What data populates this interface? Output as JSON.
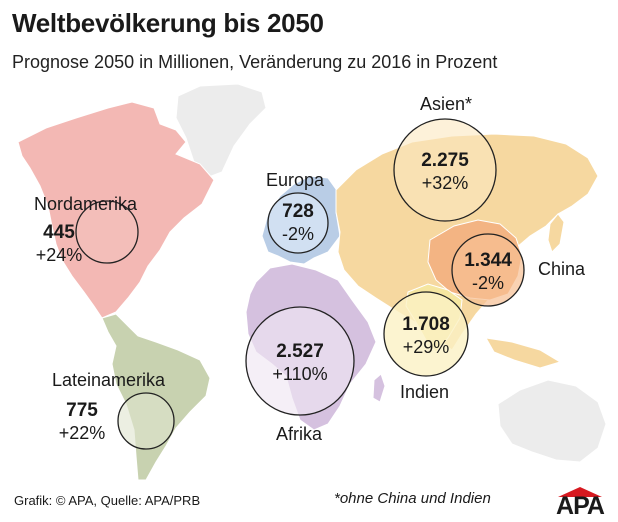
{
  "title": "Weltbevölkerung bis 2050",
  "subtitle": "Prognose 2050 in Millionen, Veränderung zu 2016 in Prozent",
  "regions": [
    {
      "id": "nordamerika",
      "name": "Nordamerika",
      "value": "445",
      "change": "+24%",
      "color": "#f3b8b4"
    },
    {
      "id": "lateinamerika",
      "name": "Lateinamerika",
      "value": "775",
      "change": "+22%",
      "color": "#c8d2b0"
    },
    {
      "id": "europa",
      "name": "Europa",
      "value": "728",
      "change": "-2%",
      "color": "#b9cde6"
    },
    {
      "id": "afrika",
      "name": "Afrika",
      "value": "2.527",
      "change": "+110%",
      "color": "#d5c1df"
    },
    {
      "id": "asien",
      "name": "Asien*",
      "value": "2.275",
      "change": "+32%",
      "color": "#f6d8a0"
    },
    {
      "id": "china",
      "name": "China",
      "value": "1.344",
      "change": "-2%",
      "color": "#f3b483"
    },
    {
      "id": "indien",
      "name": "Indien",
      "value": "1.708",
      "change": "+29%",
      "color": "#f5e6a0"
    }
  ],
  "footer": {
    "source": "Grafik: © APA, Quelle: APA/PRB",
    "note": "*ohne China und Indien",
    "logo": "APA",
    "logo_color": "#d71920"
  }
}
